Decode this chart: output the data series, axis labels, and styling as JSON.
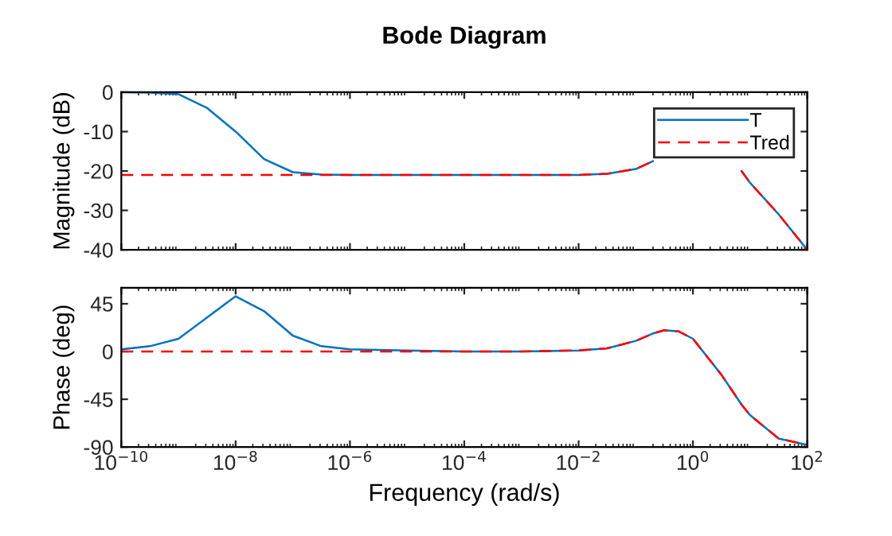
{
  "chart_data": [
    {
      "type": "line",
      "title": "Bode Diagram",
      "ylabel": "Magnitude (dB)",
      "log": "x",
      "xlim": [
        1e-10,
        100
      ],
      "xticks": [
        {
          "value": 1e-10,
          "label": null
        },
        {
          "value": 1e-08,
          "label": null
        },
        {
          "value": 1e-06,
          "label": null
        },
        {
          "value": 0.0001,
          "label": null
        },
        {
          "value": 0.01,
          "label": null
        },
        {
          "value": 1,
          "label": null
        },
        {
          "value": 100,
          "label": null
        }
      ],
      "ylim": [
        -40,
        0
      ],
      "yticks": [
        -40,
        -30,
        -20,
        -10,
        0
      ],
      "tick_labels": "y",
      "legend": "top right",
      "grid": false,
      "x": [
        1e-10,
        3.16e-10,
        1e-09,
        3.16e-09,
        1e-08,
        3.16e-08,
        1e-07,
        3.16e-07,
        1e-06,
        1e-05,
        0.0001,
        0.001,
        0.01,
        0.0316,
        0.1,
        0.2,
        0.316,
        0.562,
        1,
        1.78,
        3.16,
        5.62,
        7.08,
        10,
        31.6,
        100
      ],
      "series": [
        {
          "name": "T",
          "color": "#0072bd",
          "line_style": "solid",
          "values": [
            0,
            -0.1,
            -0.5,
            -4,
            -10,
            -17,
            -20.3,
            -20.9,
            -21,
            -21,
            -21,
            -21,
            -21,
            -20.7,
            -19.5,
            -17.5,
            null,
            null,
            null,
            null,
            null,
            null,
            -20,
            -23,
            -31,
            -40
          ]
        },
        {
          "name": "Tred",
          "color": "#ff0000",
          "line_style": "dashed",
          "values": [
            -21,
            -21,
            -21,
            -21,
            -21,
            -21,
            -21,
            -21,
            -21,
            -21,
            -21,
            -21,
            -21,
            -20.7,
            -19.5,
            -17.5,
            null,
            null,
            null,
            null,
            null,
            null,
            -20,
            -23,
            -31,
            -40
          ]
        }
      ]
    },
    {
      "type": "line",
      "xlabel": "Frequency (rad/s)",
      "ylabel": "Phase (deg)",
      "log": "x",
      "xlim": [
        1e-10,
        100
      ],
      "xticks": [
        {
          "value": 1e-10,
          "label": "10$^{−10}$"
        },
        {
          "value": 1e-08,
          "label": "10$^{−8}$"
        },
        {
          "value": 1e-06,
          "label": "10$^{−6}$"
        },
        {
          "value": 0.0001,
          "label": "10$^{−4}$"
        },
        {
          "value": 0.01,
          "label": "10$^{−2}$"
        },
        {
          "value": 1,
          "label": "10$^{0}$"
        },
        {
          "value": 100,
          "label": "10$^{2}$"
        }
      ],
      "ylim": [
        -90,
        60
      ],
      "yticks": [
        -90,
        -45,
        0,
        45
      ],
      "grid": false,
      "x": [
        1e-10,
        3.16e-10,
        1e-09,
        3.16e-09,
        1e-08,
        3.16e-08,
        1e-07,
        3.16e-07,
        1e-06,
        1e-05,
        0.0001,
        0.001,
        0.01,
        0.0316,
        0.1,
        0.2,
        0.316,
        0.562,
        1,
        1.78,
        3.16,
        5.62,
        7.08,
        10,
        31.6,
        100
      ],
      "series": [
        {
          "color": "#0072bd",
          "line_style": "solid",
          "values": [
            2,
            5,
            12,
            32,
            52,
            38,
            15,
            5,
            2,
            1,
            0,
            0,
            1,
            3,
            10,
            17,
            20,
            19,
            12,
            -5,
            -22,
            -42,
            -50,
            -60,
            -82,
            -88
          ]
        },
        {
          "color": "#ff0000",
          "line_style": "dashed",
          "values": [
            0,
            0,
            0,
            0,
            0,
            0,
            0,
            0,
            0,
            0,
            0,
            0,
            1,
            3,
            10,
            17,
            20,
            19,
            12,
            -5,
            -22,
            -42,
            -50,
            -60,
            -82,
            -88
          ]
        }
      ]
    }
  ]
}
